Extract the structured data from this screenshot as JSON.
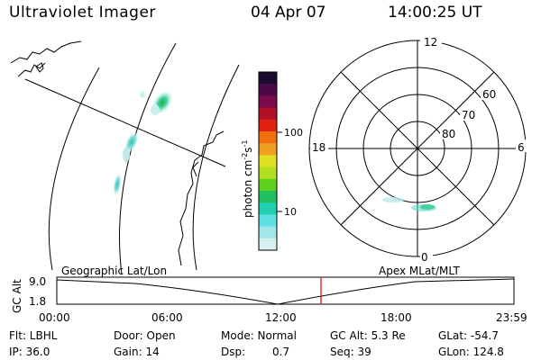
{
  "header": {
    "title": "Ultraviolet Imager",
    "date": "04 Apr 07",
    "time": "14:00:25 UT"
  },
  "colorbar": {
    "label": "photon cm",
    "label_sup1": "-2",
    "label_mid": "s",
    "label_sup2": "-1",
    "ticks": [
      "100",
      "10"
    ],
    "colors": [
      "#1a0a30",
      "#4a0a4a",
      "#7a0a4a",
      "#b0102a",
      "#e02010",
      "#f07010",
      "#f0a020",
      "#e0e020",
      "#b0e020",
      "#60d020",
      "#20c060",
      "#20d0b0",
      "#60e0e0",
      "#a0e8e8",
      "#d8f0f0"
    ]
  },
  "polar": {
    "mlt_labels": [
      "12",
      "18",
      "6",
      "0"
    ],
    "lat_labels": [
      "60",
      "70",
      "80"
    ]
  },
  "timeline": {
    "y_label": "GC Alt",
    "y_ticks": [
      "9.0",
      "1.8"
    ],
    "left_title": "Geographic Lat/Lon",
    "right_title": "Apex MLat/MLT",
    "x_ticks": [
      "00:00",
      "06:00",
      "12:00",
      "18:00",
      "23:59"
    ],
    "marker_color": "#e00000"
  },
  "status": {
    "filter": "Flt: LBHL",
    "ip": "IP: 36.0",
    "door": "Door: Open",
    "gain": "Gain: 14",
    "mode": "Mode: Normal",
    "dsp_label": "Dsp:",
    "dsp_value": "0.7",
    "gc_alt": "GC Alt: 5.3 Re",
    "seq": "Seq: 39",
    "glat": "GLat: -54.7",
    "glon": "GLon: 124.8"
  }
}
